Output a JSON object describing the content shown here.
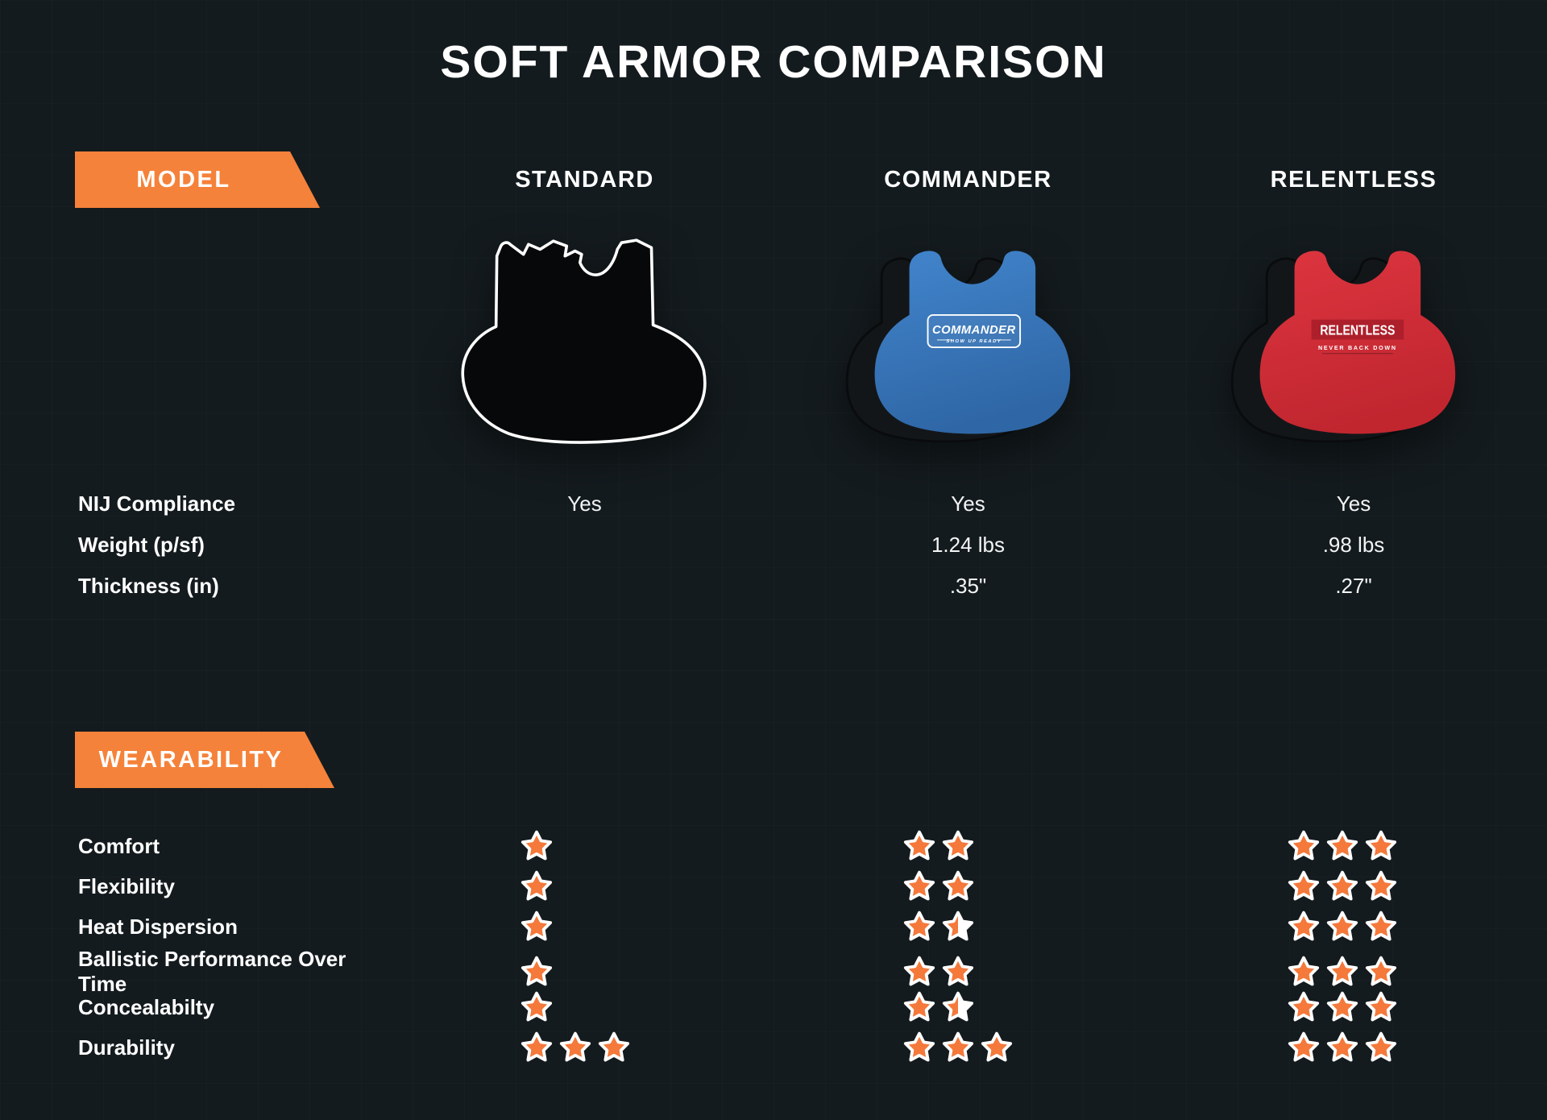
{
  "title": "SOFT ARMOR COMPARISON",
  "badges": {
    "model": "MODEL",
    "wearability": "WEARABILITY"
  },
  "columns": [
    "STANDARD",
    "COMMANDER",
    "RELENTLESS"
  ],
  "specs": {
    "rows": [
      {
        "label": "NIJ Compliance",
        "values": [
          "Yes",
          "Yes",
          "Yes"
        ]
      },
      {
        "label": "Weight (p/sf)",
        "values": [
          "",
          "1.24 lbs",
          ".98 lbs"
        ]
      },
      {
        "label": "Thickness (in)",
        "values": [
          "",
          ".35\"",
          ".27\""
        ]
      }
    ]
  },
  "wearability": {
    "max_stars": 3,
    "rows": [
      {
        "label": "Comfort",
        "ratings": [
          1,
          2,
          3
        ]
      },
      {
        "label": "Flexibility",
        "ratings": [
          1,
          2,
          3
        ]
      },
      {
        "label": "Heat Dispersion",
        "ratings": [
          1,
          1.5,
          3
        ]
      },
      {
        "label": "Ballistic Performance Over Time",
        "ratings": [
          1,
          2,
          3
        ]
      },
      {
        "label": "Concealabilty",
        "ratings": [
          1,
          1.5,
          3
        ]
      },
      {
        "label": "Durability",
        "ratings": [
          3,
          3,
          3
        ]
      }
    ]
  },
  "vests": {
    "standard": {
      "style": "black-panel-white-outline"
    },
    "commander": {
      "logo_title": "COMMANDER",
      "logo_tagline": "SHOW UP READY",
      "color": "#3b7cc4"
    },
    "relentless": {
      "logo_title": "RELENTLESS",
      "logo_tagline": "NEVER BACK DOWN",
      "color": "#d6303a"
    }
  },
  "colors": {
    "background": "#141b1e",
    "accent_orange": "#f5823a",
    "star_orange": "#f4793b",
    "star_outline": "#ffffff",
    "text": "#ffffff"
  }
}
